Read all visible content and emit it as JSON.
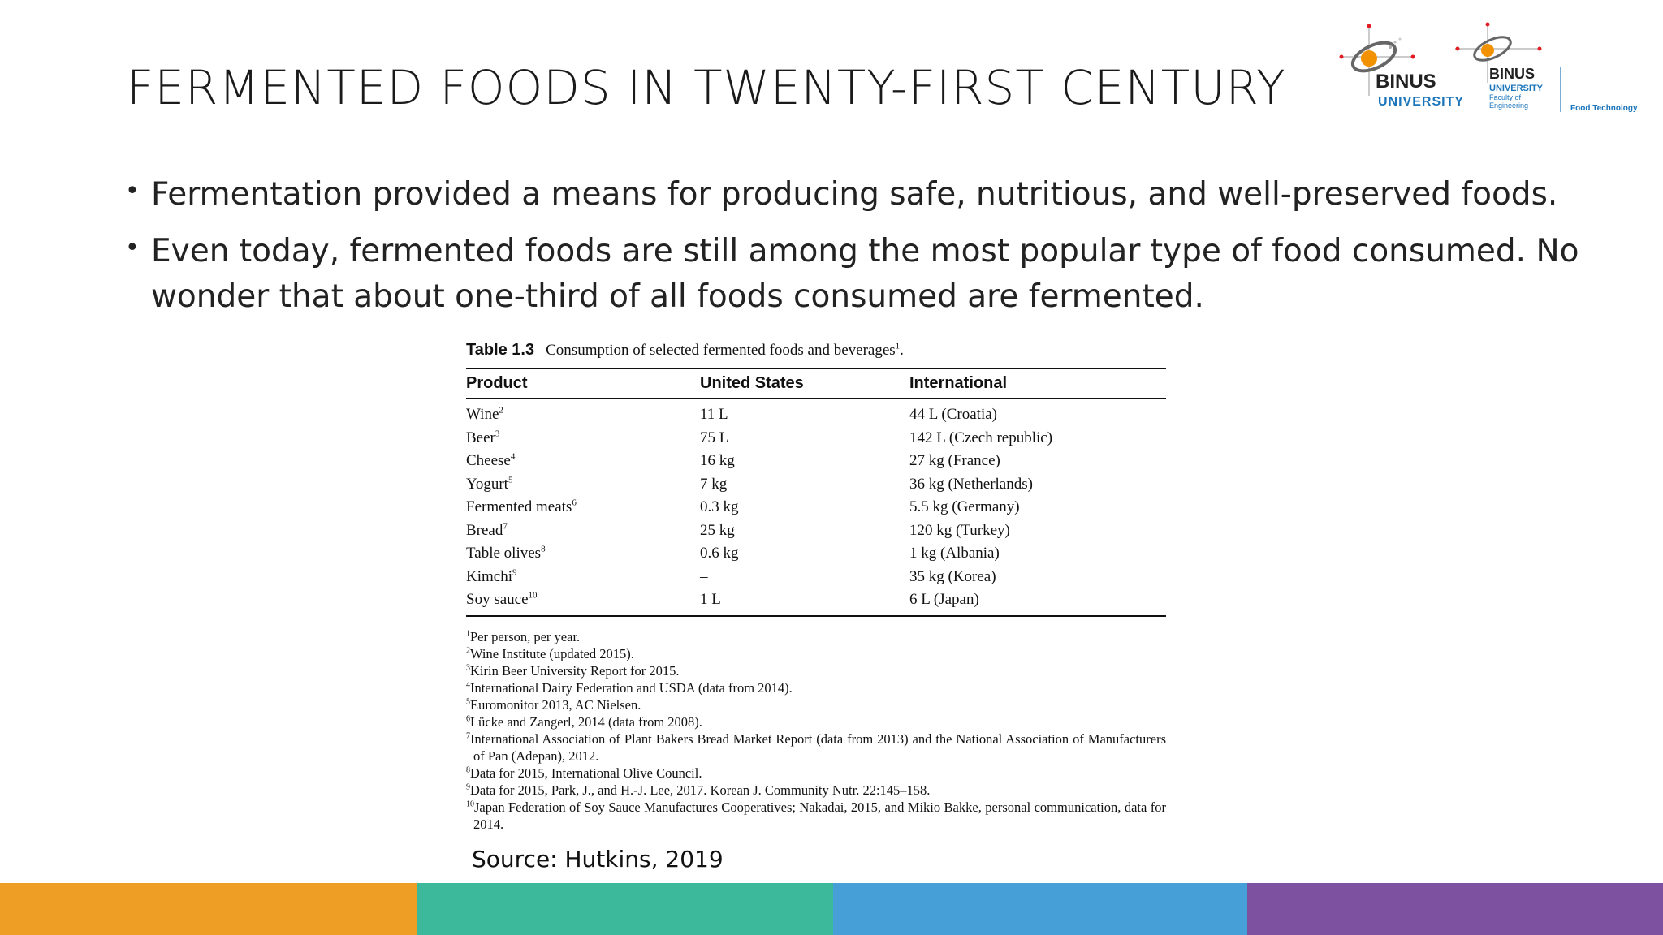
{
  "slide": {
    "title": "FERMENTED FOODS IN TWENTY-FIRST CENTURY",
    "bullets": [
      "Fermentation provided a means for producing safe, nutritious, and well-preserved foods.",
      "Even today, fermented foods are still among the most popular type of food consumed. No wonder that about one-third of all foods consumed are fermented."
    ],
    "source": "Source: Hutkins, 2019"
  },
  "logos": {
    "left": {
      "line1": "BINUS",
      "line2": "UNIVERSITY"
    },
    "right": {
      "line1": "BINUS",
      "line2": "UNIVERSITY",
      "line3": "Faculty of",
      "line4": "Engineering",
      "dept": "Food Technology"
    }
  },
  "table": {
    "label": "Table 1.3",
    "caption": "Consumption of selected fermented foods and beverages",
    "caption_sup": "1",
    "headers": [
      "Product",
      "United States",
      "International"
    ],
    "rows": [
      {
        "product": "Wine",
        "sup": "2",
        "us": "11 L",
        "intl": "44 L (Croatia)"
      },
      {
        "product": "Beer",
        "sup": "3",
        "us": "75 L",
        "intl": "142 L (Czech republic)"
      },
      {
        "product": "Cheese",
        "sup": "4",
        "us": "16 kg",
        "intl": "27 kg (France)"
      },
      {
        "product": "Yogurt",
        "sup": "5",
        "us": "7 kg",
        "intl": "36 kg (Netherlands)"
      },
      {
        "product": "Fermented meats",
        "sup": "6",
        "us": "0.3 kg",
        "intl": "5.5 kg (Germany)"
      },
      {
        "product": "Bread",
        "sup": "7",
        "us": "25 kg",
        "intl": "120 kg (Turkey)"
      },
      {
        "product": "Table olives",
        "sup": "8",
        "us": "0.6 kg",
        "intl": "1 kg (Albania)"
      },
      {
        "product": "Kimchi",
        "sup": "9",
        "us": "–",
        "intl": "35 kg (Korea)"
      },
      {
        "product": "Soy sauce",
        "sup": "10",
        "us": "1 L",
        "intl": "6 L (Japan)"
      }
    ],
    "footnotes": [
      {
        "n": "1",
        "text": "Per person, per year."
      },
      {
        "n": "2",
        "text": "Wine Institute (updated 2015)."
      },
      {
        "n": "3",
        "text": "Kirin Beer University Report for 2015."
      },
      {
        "n": "4",
        "text": "International Dairy Federation and USDA (data from 2014)."
      },
      {
        "n": "5",
        "text": "Euromonitor 2013, AC Nielsen."
      },
      {
        "n": "6",
        "text": "Lücke and Zangerl, 2014 (data from 2008)."
      },
      {
        "n": "7",
        "text": "International Association of Plant Bakers Bread Market Report (data from 2013) and the National Association of Manufacturers of Pan (Adepan), 2012."
      },
      {
        "n": "8",
        "text": "Data for 2015, International Olive Council."
      },
      {
        "n": "9",
        "text": "Data for 2015, Park, J., and H.-J. Lee, 2017. Korean J. Community Nutr. 22:145–158."
      },
      {
        "n": "10",
        "text": "Japan Federation of Soy Sauce Manufactures Cooperatives; Nakadai, 2015, and Mikio Bakke, personal communication, data for 2014."
      }
    ]
  },
  "footer_colors": [
    "#EE9E24",
    "#3BB99A",
    "#479FD8",
    "#7E50A0"
  ],
  "brand_colors": {
    "logo_orange": "#F39200",
    "logo_blue": "#1B75BB",
    "logo_dark": "#222222"
  }
}
